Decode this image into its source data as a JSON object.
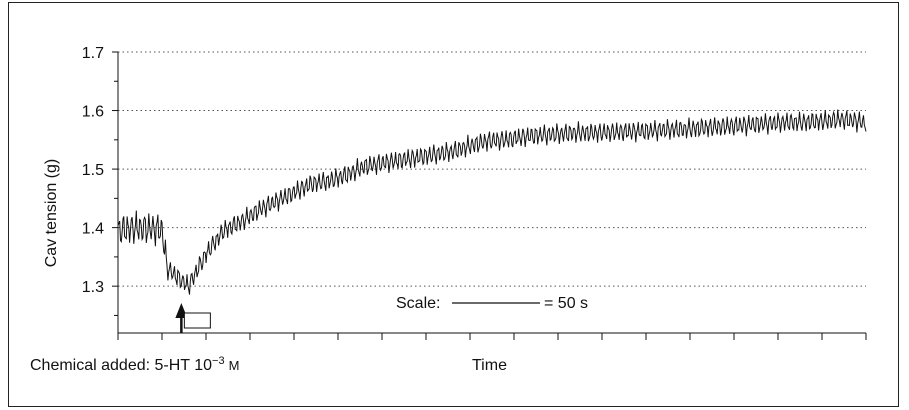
{
  "chart_data": {
    "type": "line",
    "title": "",
    "xlabel": "Time",
    "ylabel": "Cav tension (g)",
    "ylim": [
      1.22,
      1.7
    ],
    "yticks": [
      "1.3",
      "1.4",
      "1.5",
      "1.6",
      "1.7"
    ],
    "grid": "horizontal dotted",
    "x_unit": "s",
    "x_range": [
      0,
      425
    ],
    "series": [
      {
        "name": "",
        "x": [
          0,
          10,
          20,
          25,
          28,
          32,
          40,
          50,
          60,
          70,
          80,
          90,
          100,
          110,
          120,
          130,
          140,
          150,
          160,
          170,
          180,
          190,
          200,
          210,
          220,
          230,
          240,
          250,
          260,
          270,
          280,
          290,
          300,
          310,
          320,
          330,
          340,
          350,
          360,
          370,
          380,
          390,
          400,
          410,
          420,
          425
        ],
        "values": [
          1.395,
          1.4,
          1.398,
          1.396,
          1.33,
          1.32,
          1.3,
          1.355,
          1.395,
          1.41,
          1.43,
          1.445,
          1.46,
          1.475,
          1.48,
          1.49,
          1.505,
          1.51,
          1.515,
          1.52,
          1.525,
          1.53,
          1.54,
          1.548,
          1.55,
          1.555,
          1.558,
          1.56,
          1.562,
          1.562,
          1.563,
          1.564,
          1.565,
          1.567,
          1.568,
          1.57,
          1.572,
          1.574,
          1.576,
          1.578,
          1.58,
          1.58,
          1.582,
          1.585,
          1.582,
          1.578
        ],
        "oscillation_amplitude_g": 0.02
      }
    ],
    "annotations": {
      "chemical_added": "Chemical added: 5-HT 10",
      "chemical_exponent": "−3",
      "chemical_unit": "M",
      "chemical_time": 36,
      "scale_label": "Scale:",
      "scale_value": "= 50 s",
      "scale_duration": 50
    }
  }
}
